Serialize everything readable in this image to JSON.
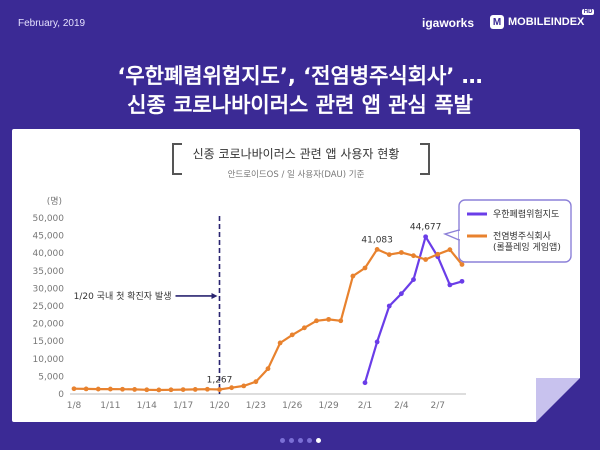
{
  "header": {
    "date": "February, 2019",
    "brand_igaworks": "igaworks",
    "brand_mobileindex": "MOBILEINDEX",
    "brand_badge": "HD"
  },
  "headline": {
    "line1": "‘우한폐렴위험지도’, ‘전염병주식회사’ …",
    "line2": "신종 코로나바이러스 관련 앱 관심 폭발"
  },
  "pager": {
    "count": 5,
    "active": 4
  },
  "chart_data": {
    "type": "line",
    "title": "신종 코로나바이러스 관련 앱 사용자 현황",
    "subtitle": "안드로이드OS / 일 사용자(DAU) 기준",
    "y_unit": "(명)",
    "ylim": [
      0,
      50000
    ],
    "y_ticks": [
      "0",
      "5,000",
      "10,000",
      "15,000",
      "20,000",
      "25,000",
      "30,000",
      "35,000",
      "40,000",
      "45,000",
      "50,000"
    ],
    "categories": [
      "1/8",
      "1/9",
      "1/10",
      "1/11",
      "1/12",
      "1/13",
      "1/14",
      "1/15",
      "1/16",
      "1/17",
      "1/18",
      "1/19",
      "1/20",
      "1/21",
      "1/22",
      "1/23",
      "1/24",
      "1/25",
      "1/26",
      "1/27",
      "1/28",
      "1/29",
      "1/30",
      "1/31",
      "2/1",
      "2/2",
      "2/3",
      "2/4",
      "2/5",
      "2/6",
      "2/7",
      "2/8",
      "2/9"
    ],
    "x_tick_labels": [
      "1/8",
      "1/11",
      "1/14",
      "1/17",
      "1/20",
      "1/23",
      "1/26",
      "1/29",
      "2/1",
      "2/4",
      "2/7"
    ],
    "series": [
      {
        "name": "우한폐렴위험지도",
        "color": "#6a3de8",
        "values": [
          null,
          null,
          null,
          null,
          null,
          null,
          null,
          null,
          null,
          null,
          null,
          null,
          null,
          null,
          null,
          null,
          null,
          null,
          null,
          null,
          null,
          null,
          null,
          null,
          3200,
          14800,
          25000,
          28500,
          32500,
          44677,
          39000,
          31000,
          32000
        ]
      },
      {
        "name": "전염병주식회사\n(롤플레잉 게임앱)",
        "color": "#e8822e",
        "values": [
          1500,
          1450,
          1400,
          1400,
          1350,
          1300,
          1200,
          1150,
          1200,
          1250,
          1300,
          1350,
          1267,
          1800,
          2300,
          3500,
          7200,
          14500,
          16800,
          18800,
          20800,
          21200,
          20800,
          33500,
          35800,
          41083,
          39600,
          40200,
          39300,
          38200,
          39700,
          41000,
          36800
        ]
      }
    ],
    "annotations": [
      {
        "text": "1/20 국내 첫 확진자 발생",
        "x": "1/20"
      },
      {
        "text": "1,267",
        "x": "1/20",
        "series": 1
      },
      {
        "text": "41,083",
        "x": "2/2",
        "series": 1
      },
      {
        "text": "44,677",
        "x": "2/6",
        "series": 0
      }
    ],
    "legend": "top-right",
    "grid": false
  }
}
